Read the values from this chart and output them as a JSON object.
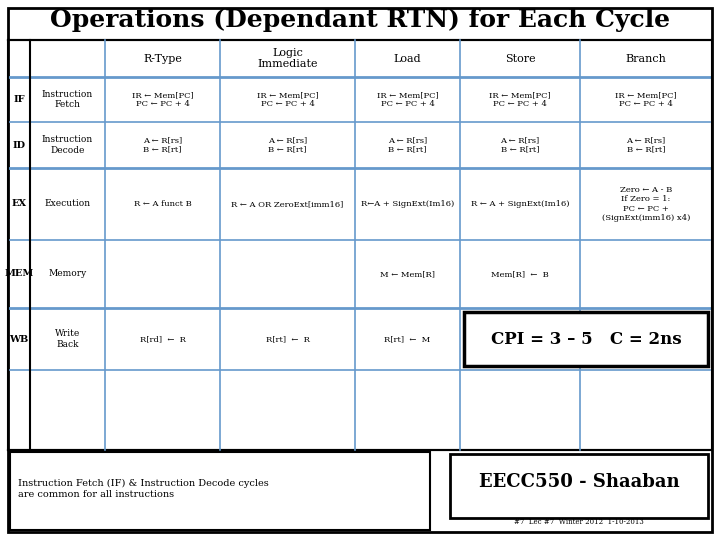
{
  "title": "Operations (Dependant RTN) for Each Cycle",
  "background_color": "#ffffff",
  "title_fontsize": 18,
  "col_headers": [
    "",
    "R-Type",
    "Logic\nImmediate",
    "Load",
    "Store",
    "Branch"
  ],
  "row_labels": [
    "IF",
    "ID",
    "EX",
    "MEM",
    "WB"
  ],
  "row_names": [
    "Instruction\nFetch",
    "Instruction\nDecode",
    "Execution",
    "Memory",
    "Write\nBack"
  ],
  "cell_data": [
    [
      "IR ← Mem[PC]\nPC ← PC + 4",
      "IR ← Mem[PC]\nPC ← PC + 4",
      "IR ← Mem[PC]\nPC ← PC + 4",
      "IR ← Mem[PC]\nPC ← PC + 4",
      "IR ← Mem[PC]\nPC ← PC + 4"
    ],
    [
      "A ← R[rs]\nB ← R[rt]",
      "A ← R[rs]\nB ← R[rt]",
      "A ← R[rs]\nB ← R[rt]",
      "A ← R[rs]\nB ← R[rt]",
      "A ← R[rs]\nB ← R[rt]"
    ],
    [
      "R ← A funct B",
      "R ← A OR ZeroExt[imm16]",
      "R←A + SignExt(Im16)",
      "R ← A + SignExt(Im16)",
      "Zero ← A - B\nIf Zero = 1:\nPC ← PC +\n(SignExt(imm16) x4)"
    ],
    [
      "",
      "",
      "M ← Mem[R]",
      "Mem[R]  ←  B",
      ""
    ],
    [
      "R[rd]  ←  R",
      "R[rt]  ←  R",
      "R[rt]  ←  M",
      "",
      ""
    ]
  ],
  "cpi_text": "CPI = 3 – 5   C = 2ns",
  "footer_left": "Instruction Fetch (IF) & Instruction Decode cycles\nare common for all instructions",
  "footer_right": "EECC550 - Shaaban",
  "footer_sub": "#7  Lec #7  Winter 2012  1-10-2013",
  "grid_color": "#6699cc"
}
